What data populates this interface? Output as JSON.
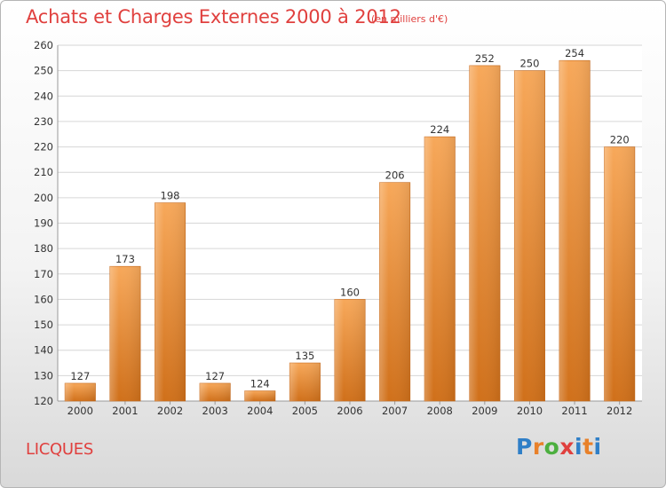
{
  "header": {
    "title": "Achats et Charges Externes 2000 à 2012",
    "subtitle": "(en milliers d'€)"
  },
  "footer": {
    "location": "LICQUES",
    "logo_letters": [
      "P",
      "r",
      "o",
      "x",
      "i",
      "t",
      "i"
    ],
    "logo_colors": [
      "#2f7fc7",
      "#e8812a",
      "#4caf3f",
      "#e0403e",
      "#2f7fc7",
      "#e8812a",
      "#2f7fc7"
    ]
  },
  "chart_data": {
    "type": "bar",
    "categories": [
      "2000",
      "2001",
      "2002",
      "2003",
      "2004",
      "2005",
      "2006",
      "2007",
      "2008",
      "2009",
      "2010",
      "2011",
      "2012"
    ],
    "values": [
      127,
      173,
      198,
      127,
      124,
      135,
      160,
      206,
      224,
      252,
      250,
      254,
      220
    ],
    "ylim": [
      120,
      260
    ],
    "yticks": [
      120,
      130,
      140,
      150,
      160,
      170,
      180,
      190,
      200,
      210,
      220,
      230,
      240,
      250,
      260
    ],
    "grid": true,
    "bar_color_top": "#f7a85a",
    "bar_color_bottom": "#d0701a",
    "grid_color": "#d6d6d6"
  }
}
